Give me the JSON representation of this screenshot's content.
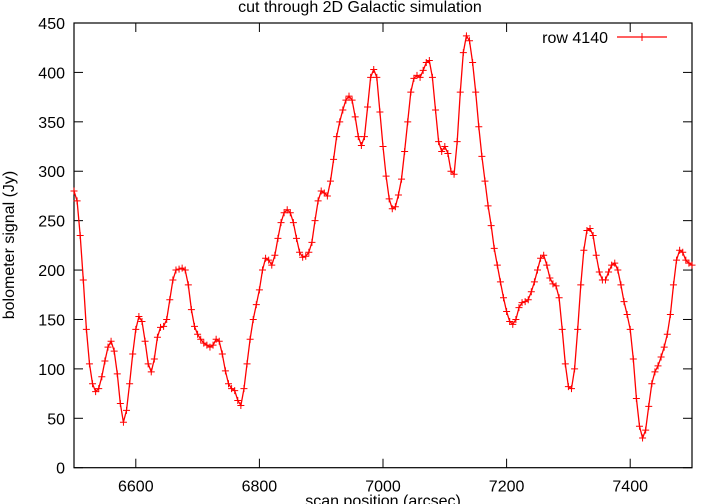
{
  "chart_data": {
    "type": "line",
    "title": "cut through 2D Galactic simulation",
    "xlabel": "scan position (arcsec)",
    "ylabel": "bolometer signal (Jy)",
    "xlim": [
      6500,
      7500
    ],
    "ylim": [
      0,
      450
    ],
    "xticks": [
      6600,
      6800,
      7000,
      7200,
      7400
    ],
    "yticks": [
      0,
      50,
      100,
      150,
      200,
      250,
      300,
      350,
      400,
      450
    ],
    "grid": false,
    "legend_position": "top-right",
    "series": [
      {
        "name": "row 4140",
        "color": "#ff0000",
        "marker": "+",
        "x": [
          6500,
          6505,
          6510,
          6515,
          6520,
          6525,
          6530,
          6535,
          6540,
          6545,
          6550,
          6555,
          6560,
          6565,
          6570,
          6575,
          6580,
          6585,
          6590,
          6595,
          6600,
          6605,
          6610,
          6615,
          6620,
          6625,
          6630,
          6635,
          6640,
          6645,
          6650,
          6655,
          6660,
          6665,
          6670,
          6675,
          6680,
          6685,
          6690,
          6695,
          6700,
          6705,
          6710,
          6715,
          6720,
          6725,
          6730,
          6735,
          6740,
          6745,
          6750,
          6755,
          6760,
          6765,
          6770,
          6775,
          6780,
          6785,
          6790,
          6795,
          6800,
          6805,
          6810,
          6815,
          6820,
          6825,
          6830,
          6835,
          6840,
          6845,
          6850,
          6855,
          6860,
          6865,
          6870,
          6875,
          6880,
          6885,
          6890,
          6895,
          6900,
          6905,
          6910,
          6915,
          6920,
          6925,
          6930,
          6935,
          6940,
          6945,
          6950,
          6955,
          6960,
          6965,
          6970,
          6975,
          6980,
          6985,
          6990,
          6995,
          7000,
          7005,
          7010,
          7015,
          7020,
          7025,
          7030,
          7035,
          7040,
          7045,
          7050,
          7055,
          7060,
          7065,
          7070,
          7075,
          7080,
          7085,
          7090,
          7095,
          7100,
          7105,
          7110,
          7115,
          7120,
          7125,
          7130,
          7135,
          7140,
          7145,
          7150,
          7155,
          7160,
          7165,
          7170,
          7175,
          7180,
          7185,
          7190,
          7195,
          7200,
          7205,
          7210,
          7215,
          7220,
          7225,
          7230,
          7235,
          7240,
          7245,
          7250,
          7255,
          7260,
          7265,
          7270,
          7275,
          7280,
          7285,
          7290,
          7295,
          7300,
          7305,
          7310,
          7315,
          7320,
          7325,
          7330,
          7335,
          7340,
          7345,
          7350,
          7355,
          7360,
          7365,
          7370,
          7375,
          7380,
          7385,
          7390,
          7395,
          7400,
          7405,
          7410,
          7415,
          7420,
          7425,
          7430,
          7435,
          7440,
          7445,
          7450,
          7455,
          7460,
          7465,
          7470,
          7475,
          7480,
          7485,
          7490,
          7495,
          7500
        ],
        "y": [
          280,
          270,
          235,
          190,
          140,
          105,
          85,
          77,
          80,
          92,
          108,
          122,
          128,
          118,
          95,
          65,
          46,
          58,
          85,
          115,
          140,
          153,
          148,
          128,
          105,
          97,
          110,
          132,
          142,
          143,
          150,
          170,
          190,
          200,
          201,
          202,
          200,
          185,
          160,
          143,
          135,
          130,
          126,
          124,
          122,
          124,
          130,
          128,
          115,
          98,
          85,
          80,
          78,
          68,
          63,
          80,
          105,
          130,
          150,
          165,
          180,
          200,
          212,
          210,
          205,
          215,
          232,
          248,
          258,
          261,
          258,
          248,
          232,
          218,
          213,
          214,
          218,
          228,
          250,
          270,
          280,
          278,
          275,
          290,
          312,
          335,
          350,
          362,
          372,
          376,
          372,
          355,
          335,
          326,
          335,
          365,
          395,
          403,
          395,
          360,
          325,
          295,
          272,
          262,
          264,
          276,
          292,
          320,
          350,
          380,
          394,
          397,
          395,
          402,
          410,
          412,
          395,
          362,
          330,
          320,
          325,
          318,
          300,
          297,
          330,
          380,
          420,
          437,
          432,
          410,
          380,
          345,
          315,
          290,
          265,
          245,
          222,
          205,
          188,
          172,
          158,
          148,
          145,
          150,
          162,
          167,
          168,
          170,
          178,
          188,
          200,
          212,
          215,
          205,
          192,
          186,
          184,
          172,
          140,
          105,
          82,
          80,
          100,
          140,
          185,
          220,
          240,
          242,
          235,
          215,
          198,
          190,
          190,
          198,
          205,
          207,
          200,
          185,
          168,
          155,
          140,
          110,
          70,
          42,
          30,
          38,
          62,
          85,
          97,
          103,
          112,
          122,
          135,
          155,
          185,
          210,
          220,
          218,
          210,
          207,
          205
        ]
      }
    ]
  }
}
